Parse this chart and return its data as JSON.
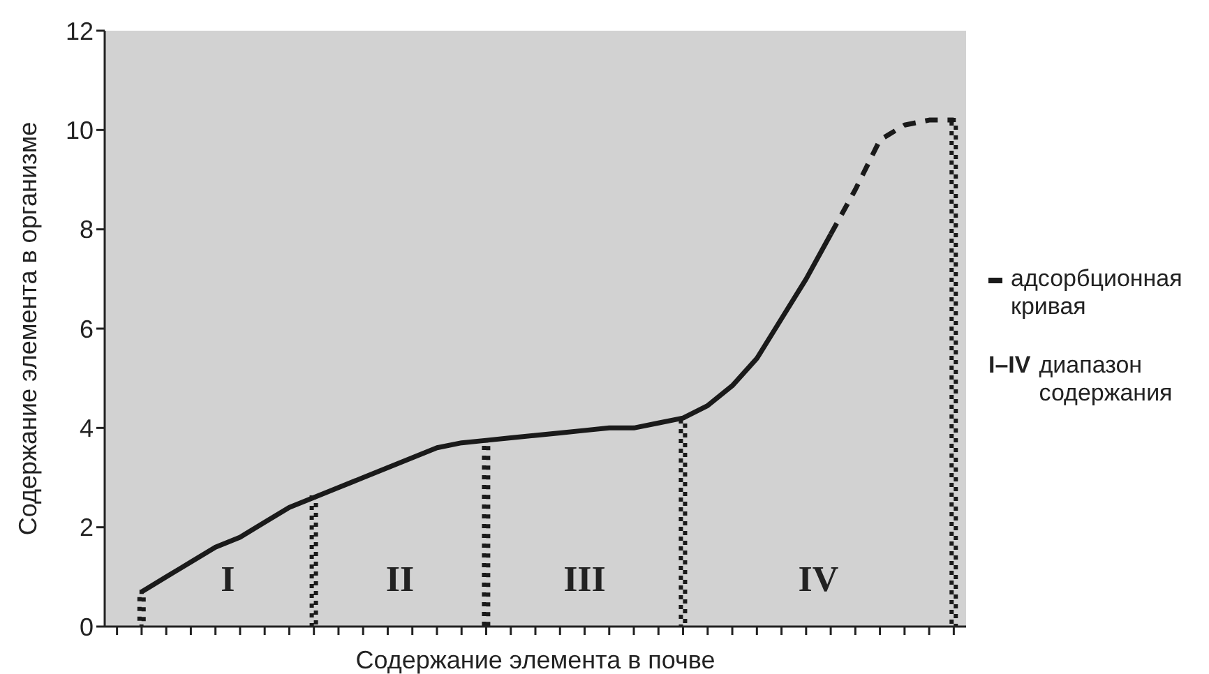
{
  "chart_data": {
    "type": "line",
    "xlabel": "Содержание элемента в почве",
    "ylabel": "Содержание элемента в организме",
    "categories": [
      null,
      null,
      null,
      null,
      null,
      null,
      null,
      null,
      null,
      null,
      null,
      null,
      null,
      null,
      null,
      null,
      null,
      null,
      null,
      null,
      null,
      null,
      null,
      null,
      null,
      null,
      null,
      null,
      null,
      null,
      null,
      null,
      null,
      null,
      null
    ],
    "ylim": [
      0,
      12
    ],
    "yticks": [
      0,
      2,
      4,
      6,
      8,
      10,
      12
    ],
    "grid": false,
    "legend": "right",
    "marker": "none",
    "series": [
      {
        "name": "адсорбционная кривая",
        "color": "#1a1a1a",
        "line_style": "solid",
        "values": [
          null,
          0.7,
          1.0,
          1.3,
          1.6,
          1.8,
          2.1,
          2.4,
          2.6,
          2.8,
          3.0,
          3.2,
          3.4,
          3.6,
          3.7,
          3.75,
          3.8,
          3.85,
          3.9,
          3.95,
          4.0,
          4.0,
          4.1,
          4.2,
          4.45,
          4.85,
          5.4,
          6.2,
          7.0,
          7.9,
          null,
          null,
          null,
          null,
          null
        ]
      },
      {
        "color": "#1a1a1a",
        "line_style": "dashed",
        "values": [
          null,
          null,
          null,
          null,
          null,
          null,
          null,
          null,
          null,
          null,
          null,
          null,
          null,
          null,
          null,
          null,
          null,
          null,
          null,
          null,
          null,
          null,
          null,
          null,
          null,
          null,
          null,
          null,
          null,
          7.9,
          8.8,
          9.8,
          10.1,
          10.2,
          10.2
        ]
      },
      {
        "type": "bar",
        "color": "#1a1a1a",
        "line_style": "dotted",
        "values": [
          null,
          0.7,
          null,
          null,
          null,
          null,
          null,
          null,
          2.6,
          null,
          null,
          null,
          null,
          null,
          null,
          3.75,
          null,
          null,
          null,
          null,
          null,
          null,
          null,
          4.2,
          null,
          null,
          null,
          null,
          null,
          null,
          null,
          null,
          null,
          null,
          10.2
        ]
      }
    ],
    "annotations": [
      "I",
      "II",
      "III",
      "IV",
      "I–IV диапазон содержания"
    ]
  }
}
